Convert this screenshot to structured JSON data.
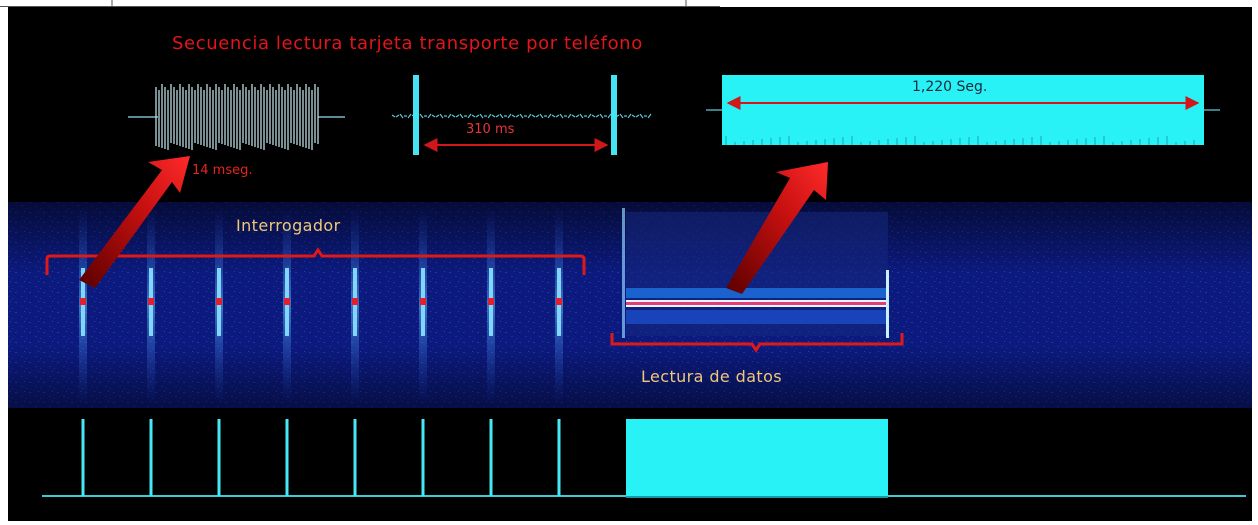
{
  "title": "Secuencia lectura tarjeta transporte por teléfono",
  "labels": {
    "pulse_duration": "14 mseg.",
    "interval": "310 ms",
    "read_duration": "1,220 Seg.",
    "interrogator": "Interrogador",
    "data_read": "Lectura de datos"
  },
  "colors": {
    "background": "#000000",
    "signal": "#4fe3f2",
    "annotation_red": "#e01818",
    "label_orange": "#f0c878",
    "spectrogram_blue": "#0d1f8c"
  },
  "interrogator_pulse_count": 8
}
